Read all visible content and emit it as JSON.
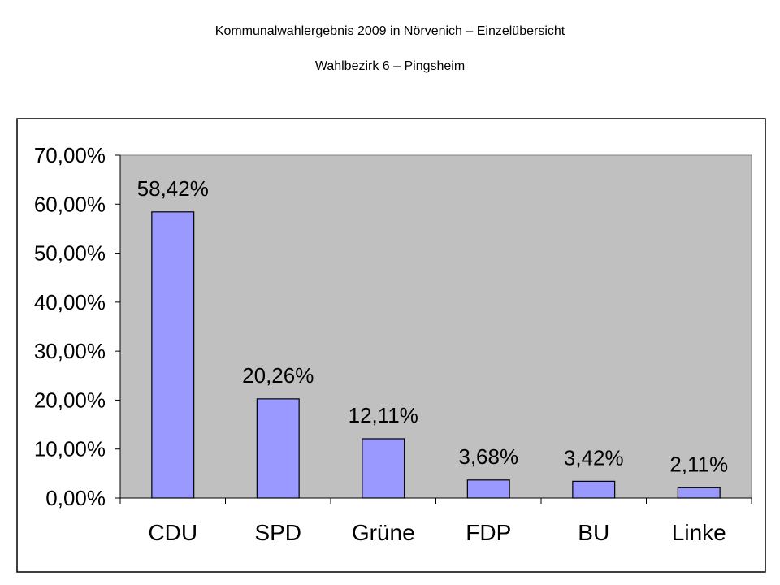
{
  "header": {
    "title": "Kommunalwahlergebnis 2009 in Nörvenich – Einzelübersicht",
    "subtitle": "Wahlbezirk 6 – Pingsheim"
  },
  "colors": {
    "bar": "#9999FF",
    "plot_background": "#C0C0C0",
    "frame": "#000000"
  },
  "chart_data": {
    "type": "bar",
    "title": "Kommunalwahlergebnis 2009 in Nörvenich – Einzelübersicht",
    "subtitle": "Wahlbezirk 6 – Pingsheim",
    "categories": [
      "CDU",
      "SPD",
      "Grüne",
      "FDP",
      "BU",
      "Linke"
    ],
    "values": [
      58.42,
      20.26,
      12.11,
      3.68,
      3.42,
      2.11
    ],
    "data_labels": [
      "58,42%",
      "20,26%",
      "12,11%",
      "3,68%",
      "3,42%",
      "2,11%"
    ],
    "yticks": [
      0,
      10,
      20,
      30,
      40,
      50,
      60,
      70
    ],
    "ytick_labels": [
      "0,00%",
      "10,00%",
      "20,00%",
      "30,00%",
      "40,00%",
      "50,00%",
      "60,00%",
      "70,00%"
    ],
    "ylim": [
      0,
      70
    ],
    "xlabel": "",
    "ylabel": "",
    "grid": false,
    "legend": "none"
  }
}
